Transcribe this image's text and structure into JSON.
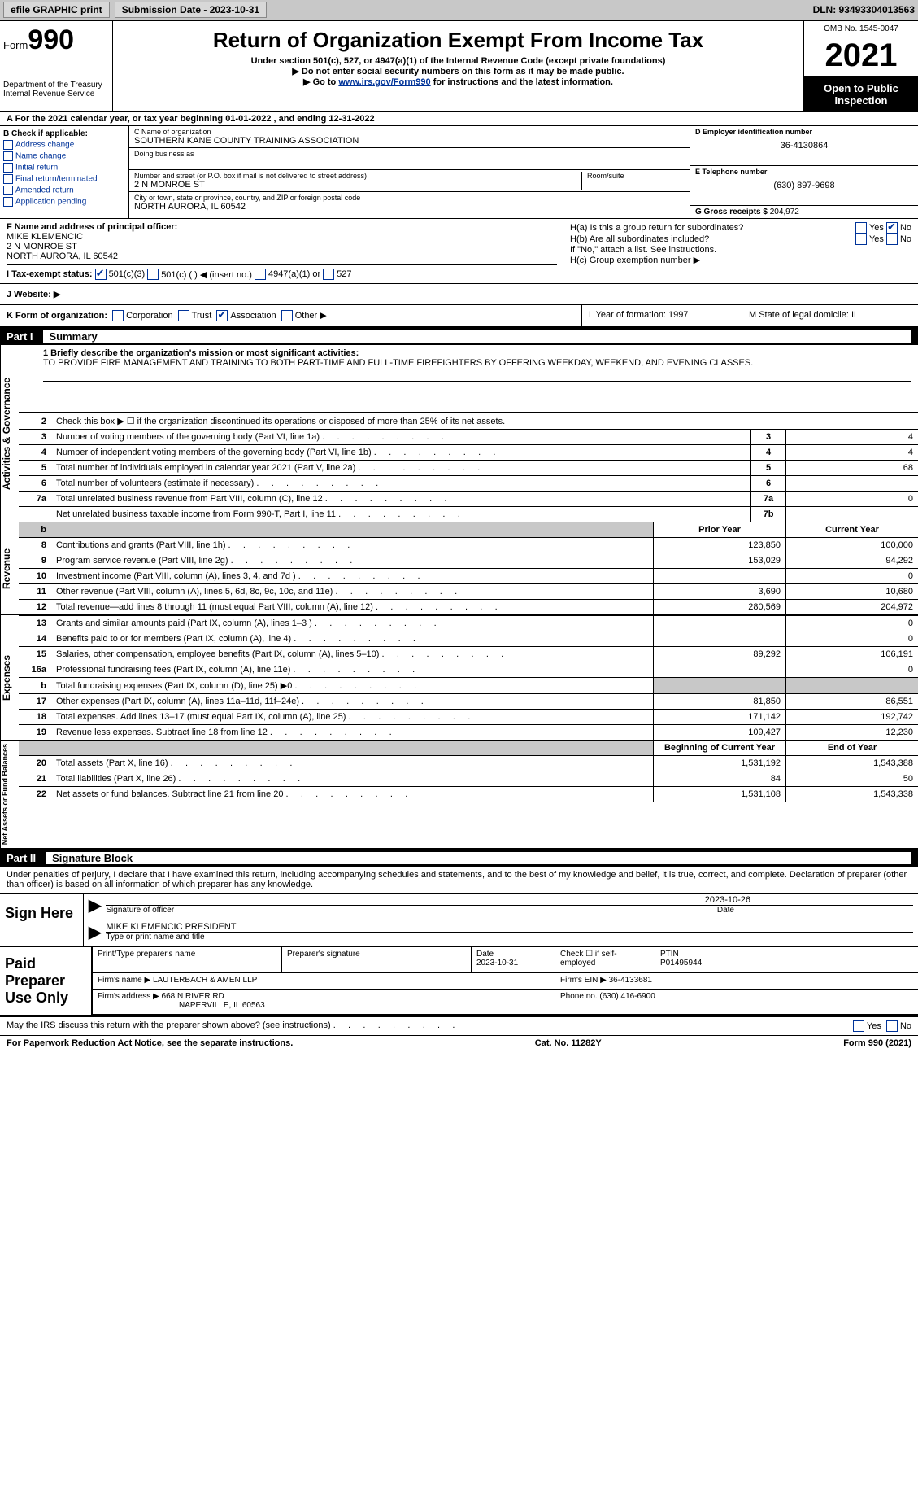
{
  "topbar": {
    "efile_label": "efile GRAPHIC print",
    "submission_label": "Submission Date - 2023-10-31",
    "dln_label": "DLN: 93493304013563"
  },
  "header": {
    "form_word": "Form",
    "form_number": "990",
    "dept": "Department of the Treasury",
    "irs": "Internal Revenue Service",
    "title": "Return of Organization Exempt From Income Tax",
    "subtitle": "Under section 501(c), 527, or 4947(a)(1) of the Internal Revenue Code (except private foundations)",
    "note1": "▶ Do not enter social security numbers on this form as it may be made public.",
    "note2_pre": "▶ Go to ",
    "note2_link": "www.irs.gov/Form990",
    "note2_post": " for instructions and the latest information.",
    "omb": "OMB No. 1545-0047",
    "tax_year": "2021",
    "inspect": "Open to Public Inspection"
  },
  "row_a": "A For the 2021 calendar year, or tax year beginning 01-01-2022   , and ending 12-31-2022",
  "col_b": {
    "caption": "B Check if applicable:",
    "items": [
      "Address change",
      "Name change",
      "Initial return",
      "Final return/terminated",
      "Amended return",
      "Application pending"
    ]
  },
  "col_c": {
    "name_lbl": "C Name of organization",
    "name_val": "SOUTHERN KANE COUNTY TRAINING ASSOCIATION",
    "dba_lbl": "Doing business as",
    "addr_lbl": "Number and street (or P.O. box if mail is not delivered to street address)",
    "room_lbl": "Room/suite",
    "addr_val": "2 N MONROE ST",
    "city_lbl": "City or town, state or province, country, and ZIP or foreign postal code",
    "city_val": "NORTH AURORA, IL  60542"
  },
  "col_d": {
    "ein_lbl": "D Employer identification number",
    "ein_val": "36-4130864",
    "phone_lbl": "E Telephone number",
    "phone_val": "(630) 897-9698",
    "gross_lbl": "G Gross receipts $",
    "gross_val": "204,972"
  },
  "row_f": {
    "lbl": "F Name and address of principal officer:",
    "name": "MIKE KLEMENCIC",
    "addr1": "2 N MONROE ST",
    "addr2": "NORTH AURORA, IL  60542"
  },
  "row_h": {
    "ha": "H(a)  Is this a group return for subordinates?",
    "hb": "H(b)  Are all subordinates included?",
    "hb_note": "If \"No,\" attach a list. See instructions.",
    "hc": "H(c)  Group exemption number ▶",
    "yes": "Yes",
    "no": "No"
  },
  "row_i": {
    "lbl": "I  Tax-exempt status:",
    "o1": "501(c)(3)",
    "o2": "501(c) (   ) ◀ (insert no.)",
    "o3": "4947(a)(1) or",
    "o4": "527"
  },
  "row_j": "J  Website: ▶",
  "row_k": "K Form of organization:",
  "row_k_opts": [
    "Corporation",
    "Trust",
    "Association",
    "Other ▶"
  ],
  "row_l": "L Year of formation: 1997",
  "row_m": "M State of legal domicile: IL",
  "part1": {
    "num": "Part I",
    "title": "Summary",
    "mission_lbl": "1   Briefly describe the organization's mission or most significant activities:",
    "mission_val": "TO PROVIDE FIRE MANAGEMENT AND TRAINING TO BOTH PART-TIME AND FULL-TIME FIREFIGHTERS BY OFFERING WEEKDAY, WEEKEND, AND EVENING CLASSES.",
    "line2": "Check this box ▶ ☐ if the organization discontinued its operations or disposed of more than 25% of its net assets.",
    "side_act": "Activities & Governance",
    "side_rev": "Revenue",
    "side_exp": "Expenses",
    "side_net": "Net Assets or Fund Balances",
    "hdr_prior": "Prior Year",
    "hdr_curr": "Current Year",
    "hdr_beg": "Beginning of Current Year",
    "hdr_end": "End of Year",
    "gov_rows": [
      {
        "n": "3",
        "d": "Number of voting members of the governing body (Part VI, line 1a)",
        "b": "3",
        "v": "4"
      },
      {
        "n": "4",
        "d": "Number of independent voting members of the governing body (Part VI, line 1b)",
        "b": "4",
        "v": "4"
      },
      {
        "n": "5",
        "d": "Total number of individuals employed in calendar year 2021 (Part V, line 2a)",
        "b": "5",
        "v": "68"
      },
      {
        "n": "6",
        "d": "Total number of volunteers (estimate if necessary)",
        "b": "6",
        "v": ""
      },
      {
        "n": "7a",
        "d": "Total unrelated business revenue from Part VIII, column (C), line 12",
        "b": "7a",
        "v": "0"
      },
      {
        "n": "",
        "d": "Net unrelated business taxable income from Form 990-T, Part I, line 11",
        "b": "7b",
        "v": ""
      }
    ],
    "rev_rows": [
      {
        "n": "8",
        "d": "Contributions and grants (Part VIII, line 1h)",
        "p": "123,850",
        "c": "100,000"
      },
      {
        "n": "9",
        "d": "Program service revenue (Part VIII, line 2g)",
        "p": "153,029",
        "c": "94,292"
      },
      {
        "n": "10",
        "d": "Investment income (Part VIII, column (A), lines 3, 4, and 7d )",
        "p": "",
        "c": "0"
      },
      {
        "n": "11",
        "d": "Other revenue (Part VIII, column (A), lines 5, 6d, 8c, 9c, 10c, and 11e)",
        "p": "3,690",
        "c": "10,680"
      },
      {
        "n": "12",
        "d": "Total revenue—add lines 8 through 11 (must equal Part VIII, column (A), line 12)",
        "p": "280,569",
        "c": "204,972"
      }
    ],
    "exp_rows": [
      {
        "n": "13",
        "d": "Grants and similar amounts paid (Part IX, column (A), lines 1–3 )",
        "p": "",
        "c": "0"
      },
      {
        "n": "14",
        "d": "Benefits paid to or for members (Part IX, column (A), line 4)",
        "p": "",
        "c": "0"
      },
      {
        "n": "15",
        "d": "Salaries, other compensation, employee benefits (Part IX, column (A), lines 5–10)",
        "p": "89,292",
        "c": "106,191"
      },
      {
        "n": "16a",
        "d": "Professional fundraising fees (Part IX, column (A), line 11e)",
        "p": "",
        "c": "0"
      },
      {
        "n": "b",
        "d": "Total fundraising expenses (Part IX, column (D), line 25) ▶0",
        "p": "shade",
        "c": "shade"
      },
      {
        "n": "17",
        "d": "Other expenses (Part IX, column (A), lines 11a–11d, 11f–24e)",
        "p": "81,850",
        "c": "86,551"
      },
      {
        "n": "18",
        "d": "Total expenses. Add lines 13–17 (must equal Part IX, column (A), line 25)",
        "p": "171,142",
        "c": "192,742"
      },
      {
        "n": "19",
        "d": "Revenue less expenses. Subtract line 18 from line 12",
        "p": "109,427",
        "c": "12,230"
      }
    ],
    "net_rows": [
      {
        "n": "20",
        "d": "Total assets (Part X, line 16)",
        "p": "1,531,192",
        "c": "1,543,388"
      },
      {
        "n": "21",
        "d": "Total liabilities (Part X, line 26)",
        "p": "84",
        "c": "50"
      },
      {
        "n": "22",
        "d": "Net assets or fund balances. Subtract line 21 from line 20",
        "p": "1,531,108",
        "c": "1,543,338"
      }
    ]
  },
  "part2": {
    "num": "Part II",
    "title": "Signature Block",
    "decl": "Under penalties of perjury, I declare that I have examined this return, including accompanying schedules and statements, and to the best of my knowledge and belief, it is true, correct, and complete. Declaration of preparer (other than officer) is based on all information of which preparer has any knowledge.",
    "sign_here": "Sign Here",
    "sig_officer": "Signature of officer",
    "sig_date": "2023-10-26",
    "date_lbl": "Date",
    "officer_name": "MIKE KLEMENCIC  PRESIDENT",
    "officer_sub": "Type or print name and title",
    "paid": "Paid Preparer Use Only",
    "prep_name_lbl": "Print/Type preparer's name",
    "prep_sig_lbl": "Preparer's signature",
    "prep_date_lbl": "Date",
    "prep_date": "2023-10-31",
    "self_emp": "Check ☐ if self-employed",
    "ptin_lbl": "PTIN",
    "ptin": "P01495944",
    "firm_name_lbl": "Firm's name     ▶",
    "firm_name": "LAUTERBACH & AMEN LLP",
    "firm_ein_lbl": "Firm's EIN ▶",
    "firm_ein": "36-4133681",
    "firm_addr_lbl": "Firm's address ▶",
    "firm_addr": "668 N RIVER RD",
    "firm_city": "NAPERVILLE, IL  60563",
    "firm_phone_lbl": "Phone no.",
    "firm_phone": "(630) 416-6900",
    "discuss": "May the IRS discuss this return with the preparer shown above? (see instructions)"
  },
  "footer": {
    "pra": "For Paperwork Reduction Act Notice, see the separate instructions.",
    "cat": "Cat. No. 11282Y",
    "form": "Form 990 (2021)"
  }
}
